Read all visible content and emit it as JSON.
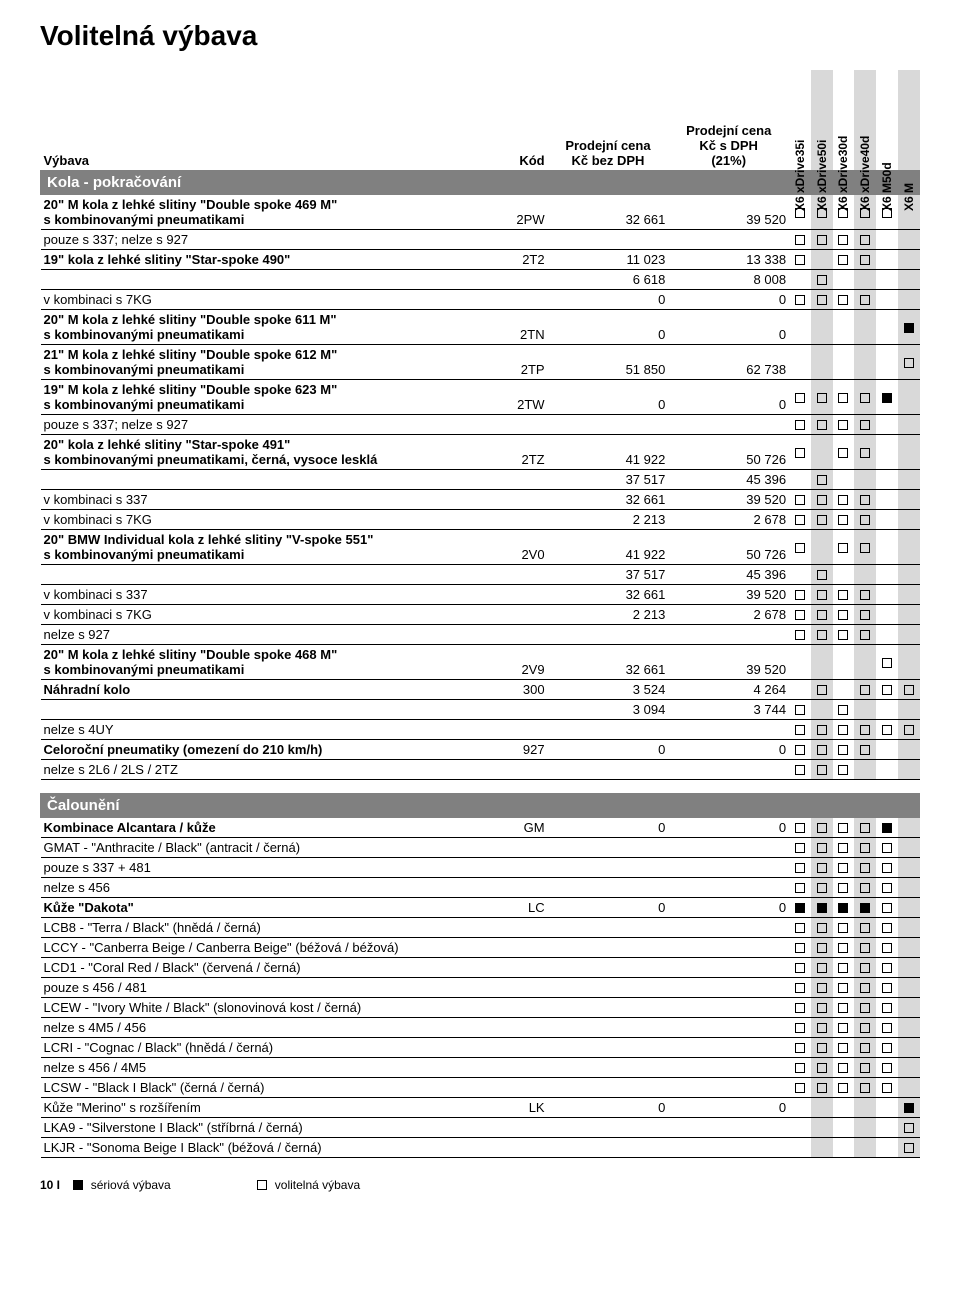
{
  "title": "Volitelná výbava",
  "header": {
    "col_vybava": "Výbava",
    "col_kod": "Kód",
    "col_price1_l1": "Prodejní cena",
    "col_price1_l2": "Kč bez DPH",
    "col_price2_l1": "Prodejní cena",
    "col_price2_l2": "Kč s DPH",
    "col_price2_l3": "(21%)",
    "models": [
      "X6 xDrive35i",
      "X6 xDrive50i",
      "X6 xDrive30d",
      "X6 xDrive40d",
      "X6 M50d",
      "X6 M"
    ]
  },
  "section1": "Kola - pokračování",
  "section2": "Čalounění",
  "rows": [
    {
      "desc": "20\" M kola z lehké slitiny \"Double spoke 469 M\"\ns kombinovanými pneumatikami",
      "bold": true,
      "code": "2PW",
      "p1": "32 661",
      "p2": "39 520",
      "m": [
        "o",
        "o",
        "o",
        "o",
        "o",
        ""
      ]
    },
    {
      "desc": "pouze s 337; nelze s 927",
      "bold": false,
      "code": "",
      "p1": "",
      "p2": "",
      "m": [
        "o",
        "o",
        "o",
        "o",
        "",
        ""
      ]
    },
    {
      "desc": "19\" kola z lehké slitiny \"Star-spoke 490\"",
      "bold": true,
      "code": "2T2",
      "p1": "11 023",
      "p2": "13 338",
      "m": [
        "o",
        "",
        "o",
        "o",
        "",
        ""
      ]
    },
    {
      "desc": "",
      "bold": false,
      "code": "",
      "p1": "6 618",
      "p2": "8 008",
      "m": [
        "",
        "o",
        "",
        "",
        "",
        ""
      ]
    },
    {
      "desc": "v kombinaci s 7KG",
      "bold": false,
      "code": "",
      "p1": "0",
      "p2": "0",
      "m": [
        "o",
        "o",
        "o",
        "o",
        "",
        ""
      ]
    },
    {
      "desc": "20\" M kola z lehké slitiny \"Double spoke 611 M\"\ns kombinovanými pneumatikami",
      "bold": true,
      "code": "2TN",
      "p1": "0",
      "p2": "0",
      "m": [
        "",
        "",
        "",
        "",
        "",
        "f"
      ]
    },
    {
      "desc": "21\" M kola z lehké slitiny \"Double spoke 612 M\"\ns kombinovanými pneumatikami",
      "bold": true,
      "code": "2TP",
      "p1": "51 850",
      "p2": "62 738",
      "m": [
        "",
        "",
        "",
        "",
        "",
        "o"
      ]
    },
    {
      "desc": "19\" M kola z lehké slitiny \"Double spoke 623 M\"\ns kombinovanými pneumatikami",
      "bold": true,
      "code": "2TW",
      "p1": "0",
      "p2": "0",
      "m": [
        "o",
        "o",
        "o",
        "o",
        "f",
        ""
      ]
    },
    {
      "desc": "pouze s 337; nelze s 927",
      "bold": false,
      "code": "",
      "p1": "",
      "p2": "",
      "m": [
        "o",
        "o",
        "o",
        "o",
        "",
        ""
      ]
    },
    {
      "desc": "20\" kola z lehké slitiny \"Star-spoke 491\"\ns kombinovanými pneumatikami, černá, vysoce lesklá",
      "bold": true,
      "code": "2TZ",
      "p1": "41 922",
      "p2": "50 726",
      "m": [
        "o",
        "",
        "o",
        "o",
        "",
        ""
      ]
    },
    {
      "desc": "",
      "bold": false,
      "code": "",
      "p1": "37 517",
      "p2": "45 396",
      "m": [
        "",
        "o",
        "",
        "",
        "",
        ""
      ]
    },
    {
      "desc": "v kombinaci s 337",
      "bold": false,
      "code": "",
      "p1": "32 661",
      "p2": "39 520",
      "m": [
        "o",
        "o",
        "o",
        "o",
        "",
        ""
      ]
    },
    {
      "desc": "v kombinaci s 7KG",
      "bold": false,
      "code": "",
      "p1": "2 213",
      "p2": "2 678",
      "m": [
        "o",
        "o",
        "o",
        "o",
        "",
        ""
      ]
    },
    {
      "desc": "20\" BMW Individual kola z lehké slitiny \"V-spoke 551\"\ns kombinovanými pneumatikami",
      "bold": true,
      "code": "2V0",
      "p1": "41 922",
      "p2": "50 726",
      "m": [
        "o",
        "",
        "o",
        "o",
        "",
        ""
      ]
    },
    {
      "desc": "",
      "bold": false,
      "code": "",
      "p1": "37 517",
      "p2": "45 396",
      "m": [
        "",
        "o",
        "",
        "",
        "",
        ""
      ]
    },
    {
      "desc": "v kombinaci s 337",
      "bold": false,
      "code": "",
      "p1": "32 661",
      "p2": "39 520",
      "m": [
        "o",
        "o",
        "o",
        "o",
        "",
        ""
      ]
    },
    {
      "desc": "v kombinaci s 7KG",
      "bold": false,
      "code": "",
      "p1": "2 213",
      "p2": "2 678",
      "m": [
        "o",
        "o",
        "o",
        "o",
        "",
        ""
      ]
    },
    {
      "desc": "nelze s 927",
      "bold": false,
      "code": "",
      "p1": "",
      "p2": "",
      "m": [
        "o",
        "o",
        "o",
        "o",
        "",
        ""
      ]
    },
    {
      "desc": "20\" M kola z lehké slitiny \"Double spoke 468 M\"\ns kombinovanými pneumatikami",
      "bold": true,
      "code": "2V9",
      "p1": "32 661",
      "p2": "39 520",
      "m": [
        "",
        "",
        "",
        "",
        "o",
        ""
      ]
    },
    {
      "desc": "Náhradní kolo",
      "bold": true,
      "code": "300",
      "p1": "3 524",
      "p2": "4 264",
      "m": [
        "",
        "o",
        "",
        "o",
        "o",
        "o"
      ]
    },
    {
      "desc": "",
      "bold": false,
      "code": "",
      "p1": "3 094",
      "p2": "3 744",
      "m": [
        "o",
        "",
        "o",
        "",
        "",
        ""
      ]
    },
    {
      "desc": "nelze s 4UY",
      "bold": false,
      "code": "",
      "p1": "",
      "p2": "",
      "m": [
        "o",
        "o",
        "o",
        "o",
        "o",
        "o"
      ]
    },
    {
      "desc": "Celoroční pneumatiky (omezení do 210 km/h)",
      "bold": true,
      "code": "927",
      "p1": "0",
      "p2": "0",
      "m": [
        "o",
        "o",
        "o",
        "o",
        "",
        ""
      ]
    },
    {
      "desc": "nelze s 2L6 / 2LS / 2TZ",
      "bold": false,
      "code": "",
      "p1": "",
      "p2": "",
      "m": [
        "o",
        "o",
        "o",
        "",
        "",
        " "
      ]
    }
  ],
  "rows2": [
    {
      "desc": "Kombinace Alcantara / kůže",
      "bold": true,
      "code": "GM",
      "p1": "0",
      "p2": "0",
      "m": [
        "o",
        "o",
        "o",
        "o",
        "f",
        ""
      ]
    },
    {
      "desc": "GMAT - \"Anthracite / Black\" (antracit / černá)",
      "bold": false,
      "code": "",
      "p1": "",
      "p2": "",
      "m": [
        "o",
        "o",
        "o",
        "o",
        "o",
        ""
      ]
    },
    {
      "desc": "pouze s 337 + 481",
      "bold": false,
      "code": "",
      "p1": "",
      "p2": "",
      "m": [
        "o",
        "o",
        "o",
        "o",
        "o",
        ""
      ]
    },
    {
      "desc": "nelze s 456",
      "bold": false,
      "code": "",
      "p1": "",
      "p2": "",
      "m": [
        "o",
        "o",
        "o",
        "o",
        "o",
        ""
      ]
    },
    {
      "desc": "Kůže \"Dakota\"",
      "bold": true,
      "code": "LC",
      "p1": "0",
      "p2": "0",
      "m": [
        "f",
        "f",
        "f",
        "f",
        "o",
        ""
      ]
    },
    {
      "desc": "LCB8 - \"Terra / Black\" (hnědá / černá)",
      "bold": false,
      "code": "",
      "p1": "",
      "p2": "",
      "m": [
        "o",
        "o",
        "o",
        "o",
        "o",
        ""
      ]
    },
    {
      "desc": "LCCY - \"Canberra Beige / Canberra Beige\" (béžová / béžová)",
      "bold": false,
      "code": "",
      "p1": "",
      "p2": "",
      "m": [
        "o",
        "o",
        "o",
        "o",
        "o",
        ""
      ]
    },
    {
      "desc": "LCD1 - \"Coral Red / Black\" (červená / černá)",
      "bold": false,
      "code": "",
      "p1": "",
      "p2": "",
      "m": [
        "o",
        "o",
        "o",
        "o",
        "o",
        ""
      ]
    },
    {
      "desc": "pouze s 456 / 481",
      "bold": false,
      "code": "",
      "p1": "",
      "p2": "",
      "m": [
        "o",
        "o",
        "o",
        "o",
        "o",
        ""
      ]
    },
    {
      "desc": "LCEW - \"Ivory White / Black\" (slonovinová kost / černá)",
      "bold": false,
      "code": "",
      "p1": "",
      "p2": "",
      "m": [
        "o",
        "o",
        "o",
        "o",
        "o",
        ""
      ]
    },
    {
      "desc": "nelze s 4M5 / 456",
      "bold": false,
      "code": "",
      "p1": "",
      "p2": "",
      "m": [
        "o",
        "o",
        "o",
        "o",
        "o",
        ""
      ]
    },
    {
      "desc": "LCRI - \"Cognac / Black\" (hnědá / černá)",
      "bold": false,
      "code": "",
      "p1": "",
      "p2": "",
      "m": [
        "o",
        "o",
        "o",
        "o",
        "o",
        ""
      ]
    },
    {
      "desc": "nelze s 456 / 4M5",
      "bold": false,
      "code": "",
      "p1": "",
      "p2": "",
      "m": [
        "o",
        "o",
        "o",
        "o",
        "o",
        ""
      ]
    },
    {
      "desc": "LCSW - \"Black I Black\" (černá / černá)",
      "bold": false,
      "code": "",
      "p1": "",
      "p2": "",
      "m": [
        "o",
        "o",
        "o",
        "o",
        "o",
        ""
      ]
    },
    {
      "desc": "Kůže \"Merino\" s rozšířením",
      "bold": false,
      "code": "LK",
      "p1": "0",
      "p2": "0",
      "m": [
        "",
        "",
        "",
        "",
        "",
        "f"
      ]
    },
    {
      "desc": "LKA9 - \"Silverstone I Black\" (stříbrná / černá)",
      "bold": false,
      "code": "",
      "p1": "",
      "p2": "",
      "m": [
        "",
        "",
        "",
        "",
        "",
        "o"
      ]
    },
    {
      "desc": "LKJR - \"Sonoma Beige I Black\" (béžová / černá)",
      "bold": false,
      "code": "",
      "p1": "",
      "p2": "",
      "m": [
        "",
        "",
        "",
        "",
        "",
        "o"
      ]
    }
  ],
  "legend": {
    "serial": "sériová výbava",
    "optional": "volitelná výbava"
  },
  "page": "10 I",
  "shaded_cols": [
    1,
    3,
    5
  ]
}
